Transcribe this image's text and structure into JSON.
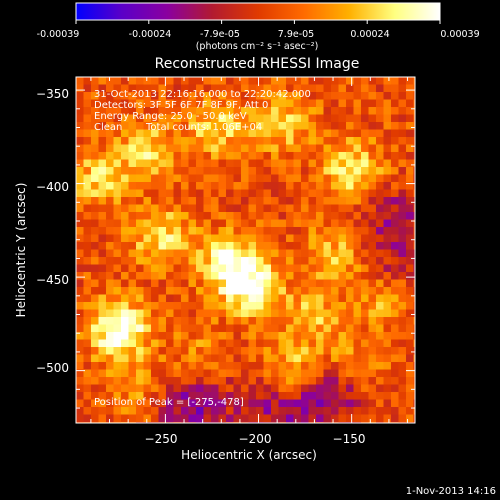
{
  "footer": {
    "date": "1-Nov-2013 14:16"
  },
  "colorbar": {
    "ticks": [
      "-0.00039",
      "-0.00024",
      "-7.9e-05",
      "7.9e-05",
      "0.00024",
      "0.00039"
    ],
    "unit": "(photons cm⁻² s⁻¹ asec⁻²)",
    "stops": [
      "#0000ff",
      "#5a00c8",
      "#8a00a0",
      "#b21a30",
      "#e03a00",
      "#ff6a00",
      "#ffb000",
      "#ffff80",
      "#ffffff"
    ]
  },
  "annotations": {
    "line1": "31-Oct-2013 22:16:16.000 to 22:20:42.000",
    "line2": "Detectors: 3F 5F 6F 7F 8F 9F, Att 0",
    "line3": "Energy Range: 25.0 - 50.0 keV",
    "line4_label": "Clean",
    "line4_counts": "Total counts: 1.06E+04",
    "peak": "Position of Peak = [-275,-478]"
  },
  "chart_data": {
    "type": "heatmap",
    "title": "Reconstructed RHESSI Image",
    "xlabel": "Heliocentric X (arcsec)",
    "ylabel": "Heliocentric Y (arcsec)",
    "xlim": [
      -298,
      -116
    ],
    "ylim": [
      -528,
      -343
    ],
    "x_ticks": [
      -250,
      -200,
      -150
    ],
    "y_ticks": [
      -350,
      -400,
      -450,
      -500
    ],
    "x_tick_labels": [
      "−250",
      "−200",
      "−150"
    ],
    "y_tick_labels": [
      "−350",
      "−400",
      "−450",
      "−500"
    ],
    "colorbar_range": [
      -0.00039,
      0.00039
    ],
    "peak_position": [
      -275,
      -478
    ],
    "hot_spots": [
      {
        "x": -275,
        "y": -478,
        "value": 0.00039
      },
      {
        "x": -204,
        "y": -455,
        "value": 0.00033
      },
      {
        "x": -217,
        "y": -442,
        "value": 0.00026
      },
      {
        "x": -253,
        "y": -428,
        "value": 0.00024
      },
      {
        "x": -260,
        "y": -382,
        "value": 0.00022
      },
      {
        "x": -286,
        "y": -398,
        "value": 0.0002
      },
      {
        "x": -222,
        "y": -370,
        "value": 0.00021
      },
      {
        "x": -186,
        "y": -368,
        "value": 0.0002
      },
      {
        "x": -150,
        "y": -392,
        "value": 0.00025
      },
      {
        "x": -160,
        "y": -438,
        "value": 0.00017
      },
      {
        "x": -170,
        "y": -470,
        "value": 0.00016
      },
      {
        "x": -133,
        "y": -462,
        "value": 0.00015
      },
      {
        "x": -182,
        "y": -498,
        "value": 0.00017
      },
      {
        "x": -150,
        "y": -500,
        "value": 0.00015
      },
      {
        "x": -232,
        "y": -492,
        "value": 0.0001
      },
      {
        "x": -265,
        "y": -510,
        "value": 0.0001
      }
    ],
    "cold_spots": [
      {
        "x": -230,
        "y": -518,
        "value": -0.00018
      },
      {
        "x": -158,
        "y": -512,
        "value": -0.00024
      },
      {
        "x": -180,
        "y": -522,
        "value": -0.00016
      },
      {
        "x": -128,
        "y": -418,
        "value": -0.00017
      },
      {
        "x": -125,
        "y": -444,
        "value": -0.00013
      },
      {
        "x": -200,
        "y": -518,
        "value": -0.00012
      },
      {
        "x": -244,
        "y": -520,
        "value": -0.0001
      }
    ]
  }
}
